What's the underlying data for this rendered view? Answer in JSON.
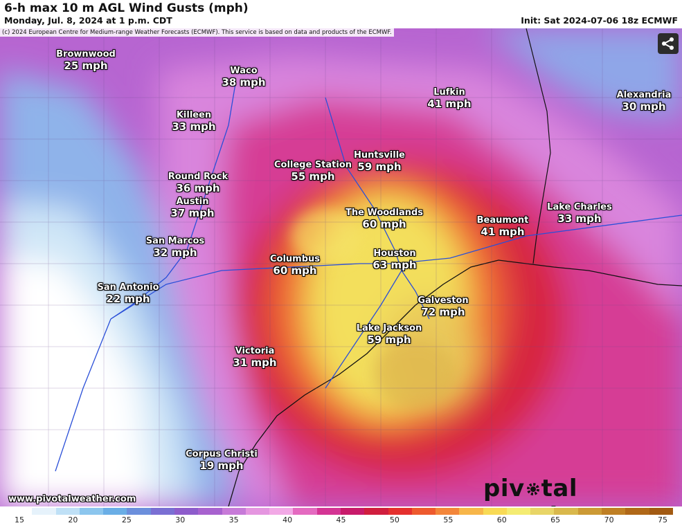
{
  "header": {
    "title": "6-h max 10 m AGL Wind Gusts (mph)",
    "subtitle": "Monday, Jul. 8, 2024 at 1 p.m. CDT",
    "init": "Init: Sat 2024-07-06 18z ECMWF"
  },
  "copyright": "(c) 2024 European Centre for Medium-range Weather Forecasts (ECMWF). This service is based on data and products of the ECMWF.",
  "cities": [
    {
      "name": "Brownwood",
      "value": "25 mph"
    },
    {
      "name": "Waco",
      "value": "38 mph"
    },
    {
      "name": "Killeen",
      "value": "33 mph"
    },
    {
      "name": "Lufkin",
      "value": "41 mph"
    },
    {
      "name": "Alexandria",
      "value": "30 mph"
    },
    {
      "name": "Huntsville",
      "value": "59 mph"
    },
    {
      "name": "College Station",
      "value": "55 mph"
    },
    {
      "name": "Round Rock",
      "value": "36 mph"
    },
    {
      "name": "Austin",
      "value": "37 mph"
    },
    {
      "name": "The Woodlands",
      "value": "60 mph"
    },
    {
      "name": "Beaumont",
      "value": "41 mph"
    },
    {
      "name": "Lake Charles",
      "value": "33 mph"
    },
    {
      "name": "San Marcos",
      "value": "32 mph"
    },
    {
      "name": "Houston",
      "value": "63 mph"
    },
    {
      "name": "Columbus",
      "value": "60 mph"
    },
    {
      "name": "San Antonio",
      "value": "22 mph"
    },
    {
      "name": "Galveston",
      "value": "72 mph"
    },
    {
      "name": "Lake Jackson",
      "value": "59 mph"
    },
    {
      "name": "Victoria",
      "value": "31 mph"
    },
    {
      "name": "Corpus Christi",
      "value": "19 mph"
    }
  ],
  "website": "www.pivotalweather.com",
  "brand": {
    "left": "piv",
    "right": "tal weather"
  },
  "legend": {
    "ticks": [
      "15",
      "20",
      "25",
      "30",
      "35",
      "40",
      "45",
      "50",
      "55",
      "60",
      "65",
      "70",
      "75"
    ],
    "colors": [
      "#ffffff",
      "#e6f2fb",
      "#bfe0f6",
      "#8cc6ee",
      "#6aaee6",
      "#6c8fdc",
      "#7a6fd3",
      "#8d5ccb",
      "#a862cf",
      "#c77ad8",
      "#e596e0",
      "#f2a9e6",
      "#e46ac0",
      "#d43494",
      "#c81a6a",
      "#d01e3e",
      "#e5302e",
      "#ee5a2e",
      "#f3863a",
      "#f7b64a",
      "#f8da55",
      "#f4ec72",
      "#e8d567",
      "#d9b84c",
      "#cc9a35",
      "#bf7f24",
      "#b06818",
      "#a25a12"
    ]
  }
}
